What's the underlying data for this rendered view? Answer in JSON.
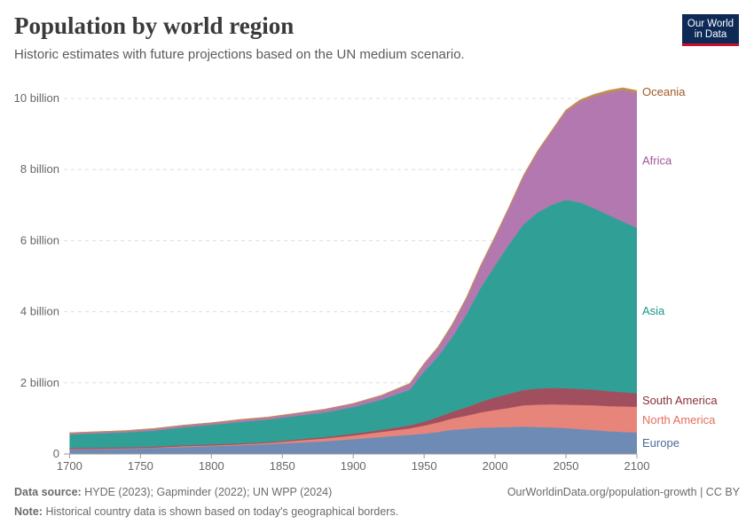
{
  "header": {
    "title": "Population by world region",
    "subtitle": "Historic estimates with future projections based on the UN medium scenario.",
    "logo_line1": "Our World",
    "logo_line2": "in Data"
  },
  "footer": {
    "source_label": "Data source:",
    "source_text": "HYDE (2023); Gapminder (2022); UN WPP (2024)",
    "url_text": "OurWorldinData.org/population-growth | CC BY",
    "note_label": "Note:",
    "note_text": "Historical country data is shown based on today's geographical borders."
  },
  "chart_data": {
    "type": "area",
    "stacked": true,
    "title": "Population by world region",
    "x": [
      1700,
      1720,
      1740,
      1760,
      1780,
      1800,
      1820,
      1840,
      1860,
      1880,
      1900,
      1920,
      1940,
      1950,
      1960,
      1970,
      1980,
      1990,
      2000,
      2010,
      2020,
      2030,
      2040,
      2050,
      2060,
      2070,
      2080,
      2090,
      2100
    ],
    "series": [
      {
        "name": "Europe",
        "color": "#6d8bb5",
        "label_color": "#4c6a9c",
        "values": [
          0.12,
          0.13,
          0.14,
          0.16,
          0.18,
          0.2,
          0.23,
          0.26,
          0.3,
          0.34,
          0.4,
          0.46,
          0.52,
          0.55,
          0.6,
          0.66,
          0.69,
          0.72,
          0.73,
          0.74,
          0.75,
          0.74,
          0.73,
          0.71,
          0.68,
          0.65,
          0.62,
          0.6,
          0.59
        ]
      },
      {
        "name": "North America",
        "color": "#e8857a",
        "label_color": "#e56e5a",
        "values": [
          0.02,
          0.02,
          0.02,
          0.02,
          0.03,
          0.03,
          0.03,
          0.04,
          0.06,
          0.08,
          0.1,
          0.14,
          0.18,
          0.23,
          0.27,
          0.32,
          0.37,
          0.43,
          0.49,
          0.54,
          0.6,
          0.63,
          0.65,
          0.66,
          0.68,
          0.7,
          0.71,
          0.72,
          0.72
        ]
      },
      {
        "name": "South America",
        "color": "#a14f5e",
        "label_color": "#883039",
        "values": [
          0.01,
          0.01,
          0.01,
          0.01,
          0.02,
          0.02,
          0.02,
          0.02,
          0.03,
          0.04,
          0.05,
          0.06,
          0.09,
          0.11,
          0.15,
          0.19,
          0.24,
          0.3,
          0.35,
          0.39,
          0.43,
          0.45,
          0.46,
          0.46,
          0.45,
          0.44,
          0.42,
          0.4,
          0.38
        ]
      },
      {
        "name": "Asia",
        "color": "#30a096",
        "label_color": "#18968a",
        "values": [
          0.38,
          0.4,
          0.42,
          0.45,
          0.5,
          0.55,
          0.6,
          0.63,
          0.66,
          0.69,
          0.75,
          0.85,
          1.0,
          1.4,
          1.7,
          2.1,
          2.6,
          3.2,
          3.7,
          4.2,
          4.65,
          4.95,
          5.15,
          5.3,
          5.25,
          5.1,
          4.95,
          4.8,
          4.65
        ]
      },
      {
        "name": "Africa",
        "color": "#b478b0",
        "label_color": "#a2559c",
        "values": [
          0.06,
          0.06,
          0.06,
          0.07,
          0.07,
          0.07,
          0.08,
          0.08,
          0.09,
          0.1,
          0.11,
          0.13,
          0.18,
          0.23,
          0.28,
          0.36,
          0.48,
          0.63,
          0.81,
          1.04,
          1.35,
          1.7,
          2.05,
          2.48,
          2.83,
          3.15,
          3.45,
          3.7,
          3.8
        ]
      },
      {
        "name": "Oceania",
        "color": "#c28e4e",
        "label_color": "#a05a28",
        "values": [
          0.001,
          0.001,
          0.001,
          0.001,
          0.001,
          0.002,
          0.002,
          0.002,
          0.003,
          0.004,
          0.006,
          0.008,
          0.011,
          0.013,
          0.016,
          0.02,
          0.023,
          0.027,
          0.031,
          0.037,
          0.043,
          0.049,
          0.055,
          0.06,
          0.065,
          0.069,
          0.072,
          0.074,
          0.075
        ]
      }
    ],
    "xlim": [
      1696,
      2100
    ],
    "ylim": [
      0,
      10.2
    ],
    "y_ticks": [
      {
        "value": 0,
        "label": "0"
      },
      {
        "value": 2,
        "label": "2 billion"
      },
      {
        "value": 4,
        "label": "4 billion"
      },
      {
        "value": 6,
        "label": "6 billion"
      },
      {
        "value": 8,
        "label": "8 billion"
      },
      {
        "value": 10,
        "label": "10 billion"
      }
    ],
    "x_ticks": [
      1700,
      1750,
      1800,
      1850,
      1900,
      1950,
      2000,
      2050,
      2100
    ],
    "grid": "horizontal-dashed",
    "legend": "right-inline"
  }
}
